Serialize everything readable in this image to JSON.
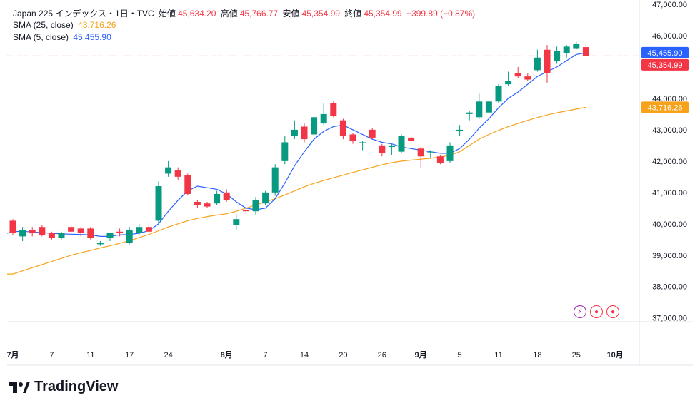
{
  "legend": {
    "symbol": "Japan 225 インデックス・1日・TVC",
    "open_label": "始値",
    "open": "45,634.20",
    "high_label": "高値",
    "high": "45,766.77",
    "low_label": "安値",
    "low": "45,354.99",
    "close_label": "終値",
    "close": "45,354.99",
    "change": "−399.89 (−0.87%)",
    "sma25_label": "SMA (25, close)",
    "sma25_value": "43,716.26",
    "sma5_label": "SMA (5, close)",
    "sma5_value": "45,455.90"
  },
  "brand": {
    "name": "TradingView"
  },
  "colors": {
    "up": "#089981",
    "down": "#f23645",
    "sma25": "#f7a21b",
    "sma5": "#2962ff"
  },
  "chart_data": {
    "type": "candlestick",
    "y_ticks": [
      "47,000.00",
      "46,000.00",
      "45,000.00",
      "44,000.00",
      "43,000.00",
      "42,000.00",
      "41,000.00",
      "40,000.00",
      "39,000.00",
      "38,000.00",
      "37,000.00"
    ],
    "ylim": [
      36900,
      47000
    ],
    "x_ticks": [
      {
        "label": "7月",
        "idx": 0
      },
      {
        "label": "7",
        "idx": 4
      },
      {
        "label": "11",
        "idx": 8
      },
      {
        "label": "17",
        "idx": 12
      },
      {
        "label": "24",
        "idx": 16
      },
      {
        "label": "8月",
        "idx": 22
      },
      {
        "label": "7",
        "idx": 26
      },
      {
        "label": "14",
        "idx": 30
      },
      {
        "label": "20",
        "idx": 34
      },
      {
        "label": "26",
        "idx": 38
      },
      {
        "label": "9月",
        "idx": 42
      },
      {
        "label": "5",
        "idx": 46
      },
      {
        "label": "11",
        "idx": 50
      },
      {
        "label": "18",
        "idx": 54
      },
      {
        "label": "25",
        "idx": 58
      },
      {
        "label": "10月",
        "idx": 62
      }
    ],
    "last_price": 45354.99,
    "price_tags": [
      {
        "value": 45455.9,
        "text": "45,455.90",
        "color": "#2962ff"
      },
      {
        "value": 45354.99,
        "text": "45,354.99",
        "color": "#f23645"
      },
      {
        "value": 43716.26,
        "text": "43,716.26",
        "color": "#f7a21b"
      }
    ],
    "candles": [
      {
        "o": 40100,
        "h": 40150,
        "c": 39700,
        "l": 39650
      },
      {
        "o": 39600,
        "h": 39900,
        "c": 39800,
        "l": 39450
      },
      {
        "o": 39800,
        "h": 39900,
        "c": 39700,
        "l": 39600
      },
      {
        "o": 39900,
        "h": 39950,
        "c": 39650,
        "l": 39600
      },
      {
        "o": 39700,
        "h": 39750,
        "c": 39550,
        "l": 39500
      },
      {
        "o": 39550,
        "h": 39750,
        "c": 39700,
        "l": 39500
      },
      {
        "o": 39900,
        "h": 39950,
        "c": 39750,
        "l": 39700
      },
      {
        "o": 39850,
        "h": 39900,
        "c": 39700,
        "l": 39600
      },
      {
        "o": 39850,
        "h": 39900,
        "c": 39550,
        "l": 39500
      },
      {
        "o": 39350,
        "h": 39450,
        "c": 39400,
        "l": 39300
      },
      {
        "o": 39550,
        "h": 39700,
        "c": 39700,
        "l": 39450
      },
      {
        "o": 39750,
        "h": 39850,
        "c": 39700,
        "l": 39600
      },
      {
        "o": 39400,
        "h": 39900,
        "c": 39800,
        "l": 39350
      },
      {
        "o": 39700,
        "h": 40000,
        "c": 39900,
        "l": 39650
      },
      {
        "o": 39900,
        "h": 40050,
        "c": 39750,
        "l": 39700
      },
      {
        "o": 40100,
        "h": 41350,
        "c": 41200,
        "l": 40000
      },
      {
        "o": 41600,
        "h": 42000,
        "c": 41800,
        "l": 41500
      },
      {
        "o": 41700,
        "h": 41800,
        "c": 41500,
        "l": 41400
      },
      {
        "o": 41550,
        "h": 41600,
        "c": 40950,
        "l": 40900
      },
      {
        "o": 40700,
        "h": 40750,
        "c": 40600,
        "l": 40500
      },
      {
        "o": 40650,
        "h": 40700,
        "c": 40550,
        "l": 40500
      },
      {
        "o": 40650,
        "h": 41050,
        "c": 40950,
        "l": 40600
      },
      {
        "o": 41000,
        "h": 41100,
        "c": 40750,
        "l": 40700
      },
      {
        "o": 39950,
        "h": 40300,
        "c": 40150,
        "l": 39800
      },
      {
        "o": 40450,
        "h": 40500,
        "c": 40400,
        "l": 40300
      },
      {
        "o": 40400,
        "h": 40850,
        "c": 40750,
        "l": 40300
      },
      {
        "o": 40650,
        "h": 41050,
        "c": 41000,
        "l": 40600
      },
      {
        "o": 41000,
        "h": 41900,
        "c": 41800,
        "l": 40900
      },
      {
        "o": 42000,
        "h": 42800,
        "c": 42600,
        "l": 41900
      },
      {
        "o": 42800,
        "h": 43300,
        "c": 43000,
        "l": 42700
      },
      {
        "o": 43100,
        "h": 43200,
        "c": 42700,
        "l": 42600
      },
      {
        "o": 42850,
        "h": 43450,
        "c": 43400,
        "l": 42800
      },
      {
        "o": 43200,
        "h": 43850,
        "c": 43500,
        "l": 43150
      },
      {
        "o": 43850,
        "h": 43900,
        "c": 43450,
        "l": 43400
      },
      {
        "o": 43300,
        "h": 43350,
        "c": 42800,
        "l": 42700
      },
      {
        "o": 42850,
        "h": 42900,
        "c": 42650,
        "l": 42550
      },
      {
        "o": 42600,
        "h": 42650,
        "c": 42600,
        "l": 42350
      },
      {
        "o": 43000,
        "h": 43050,
        "c": 42750,
        "l": 42700
      },
      {
        "o": 42500,
        "h": 42550,
        "c": 42250,
        "l": 42150
      },
      {
        "o": 42450,
        "h": 42550,
        "c": 42500,
        "l": 42200
      },
      {
        "o": 42300,
        "h": 42850,
        "c": 42800,
        "l": 42250
      },
      {
        "o": 42750,
        "h": 42800,
        "c": 42650,
        "l": 42600
      },
      {
        "o": 42400,
        "h": 42450,
        "c": 42150,
        "l": 41800
      },
      {
        "o": 42300,
        "h": 42350,
        "c": 42300,
        "l": 42100
      },
      {
        "o": 42150,
        "h": 42200,
        "c": 41950,
        "l": 41900
      },
      {
        "o": 42000,
        "h": 42600,
        "c": 42500,
        "l": 41950
      },
      {
        "o": 42950,
        "h": 43150,
        "c": 43000,
        "l": 42800
      },
      {
        "o": 43500,
        "h": 43600,
        "c": 43550,
        "l": 43300
      },
      {
        "o": 43400,
        "h": 44150,
        "c": 43900,
        "l": 43350
      },
      {
        "o": 43550,
        "h": 43950,
        "c": 43900,
        "l": 43500
      },
      {
        "o": 43900,
        "h": 44450,
        "c": 44400,
        "l": 43850
      },
      {
        "o": 44450,
        "h": 44850,
        "c": 44550,
        "l": 44400
      },
      {
        "o": 44800,
        "h": 45000,
        "c": 44700,
        "l": 44650
      },
      {
        "o": 44700,
        "h": 44800,
        "c": 44600,
        "l": 44550
      },
      {
        "o": 44900,
        "h": 45550,
        "c": 45300,
        "l": 44850
      },
      {
        "o": 45550,
        "h": 45700,
        "c": 44800,
        "l": 44500
      },
      {
        "o": 45200,
        "h": 45650,
        "c": 45500,
        "l": 45100
      },
      {
        "o": 45450,
        "h": 45700,
        "c": 45650,
        "l": 45300
      },
      {
        "o": 45600,
        "h": 45800,
        "c": 45750,
        "l": 45550
      },
      {
        "o": 45634.2,
        "h": 45766.77,
        "c": 45354.99,
        "l": 45354.99
      }
    ],
    "sma25": [
      38400,
      38500,
      38600,
      38700,
      38800,
      38900,
      39000,
      39080,
      39150,
      39230,
      39300,
      39380,
      39460,
      39560,
      39660,
      39780,
      39900,
      40000,
      40100,
      40170,
      40230,
      40280,
      40320,
      40400,
      40500,
      40600,
      40700,
      40800,
      40920,
      41050,
      41180,
      41290,
      41380,
      41470,
      41550,
      41640,
      41720,
      41800,
      41880,
      41950,
      42000,
      42030,
      42060,
      42090,
      42130,
      42180,
      42300,
      42500,
      42700,
      42850,
      42980,
      43100,
      43200,
      43300,
      43390,
      43470,
      43540,
      43600,
      43660,
      43716.26
    ],
    "sma5": [
      39750,
      39760,
      39740,
      39720,
      39700,
      39680,
      39670,
      39660,
      39650,
      39600,
      39600,
      39650,
      39660,
      39700,
      39780,
      40000,
      40400,
      40750,
      41050,
      41200,
      41150,
      41100,
      40950,
      40700,
      40500,
      40450,
      40500,
      40800,
      41300,
      41850,
      42300,
      42700,
      42950,
      43100,
      43150,
      43000,
      42850,
      42700,
      42600,
      42550,
      42450,
      42400,
      42350,
      42300,
      42250,
      42250,
      42400,
      42700,
      43050,
      43350,
      43700,
      44000,
      44200,
      44450,
      44700,
      44850,
      45000,
      45200,
      45400,
      45455.9
    ]
  }
}
